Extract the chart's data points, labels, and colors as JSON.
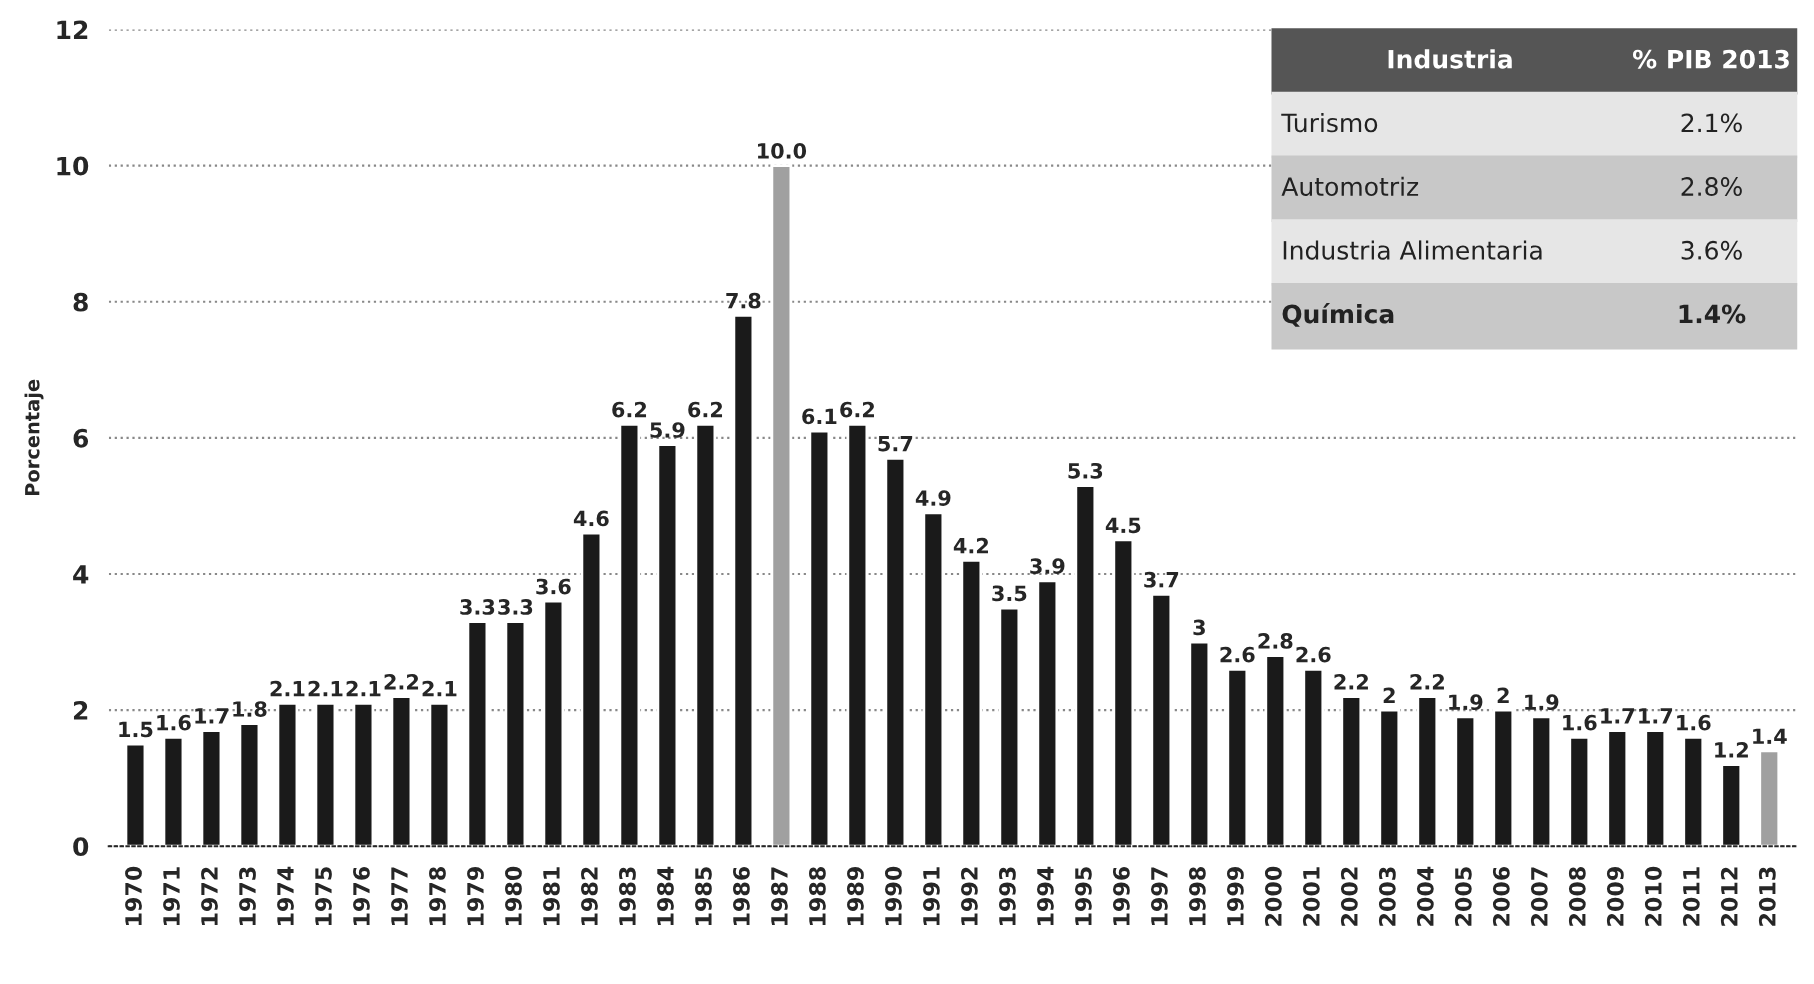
{
  "chart_data": {
    "type": "bar",
    "ylabel": "Porcentaje",
    "categories": [
      "1970",
      "1971",
      "1972",
      "1973",
      "1974",
      "1975",
      "1976",
      "1977",
      "1978",
      "1979",
      "1980",
      "1981",
      "1982",
      "1983",
      "1984",
      "1985",
      "1986",
      "1987",
      "1988",
      "1989",
      "1990",
      "1991",
      "1992",
      "1993",
      "1994",
      "1995",
      "1996",
      "1997",
      "1998",
      "1999",
      "2000",
      "2001",
      "2002",
      "2003",
      "2004",
      "2005",
      "2006",
      "2007",
      "2008",
      "2009",
      "2010",
      "2011",
      "2012",
      "2013"
    ],
    "values": [
      1.5,
      1.6,
      1.7,
      1.8,
      2.1,
      2.1,
      2.1,
      2.2,
      2.1,
      3.3,
      3.3,
      3.6,
      4.6,
      6.2,
      5.9,
      6.2,
      7.8,
      10.0,
      6.1,
      6.2,
      5.7,
      4.9,
      4.2,
      3.5,
      3.9,
      5.3,
      4.5,
      3.7,
      3,
      2.6,
      2.8,
      2.6,
      2.2,
      2,
      2.2,
      1.9,
      2,
      1.9,
      1.6,
      1.7,
      1.7,
      1.6,
      1.2,
      1.4
    ],
    "value_labels": [
      "1.5",
      "1.6",
      "1.7",
      "1.8",
      "2.1",
      "2.1",
      "2.1",
      "2.2",
      "2.1",
      "3.3",
      "3.3",
      "3.6",
      "4.6",
      "6.2",
      "5.9",
      "6.2",
      "7.8",
      "10.0",
      "6.1",
      "6.2",
      "5.7",
      "4.9",
      "4.2",
      "3.5",
      "3.9",
      "5.3",
      "4.5",
      "3.7",
      "3",
      "2.6",
      "2.8",
      "2.6",
      "2.2",
      "2",
      "2.2",
      "1.9",
      "2",
      "1.9",
      "1.6",
      "1.7",
      "1.7",
      "1.6",
      "1.2",
      "1.4"
    ],
    "colors": [
      "#1a1a1a",
      "#1a1a1a",
      "#1a1a1a",
      "#1a1a1a",
      "#1a1a1a",
      "#1a1a1a",
      "#1a1a1a",
      "#1a1a1a",
      "#1a1a1a",
      "#1a1a1a",
      "#1a1a1a",
      "#1a1a1a",
      "#1a1a1a",
      "#1a1a1a",
      "#1a1a1a",
      "#1a1a1a",
      "#1a1a1a",
      "#a0a0a0",
      "#1a1a1a",
      "#1a1a1a",
      "#1a1a1a",
      "#1a1a1a",
      "#1a1a1a",
      "#1a1a1a",
      "#1a1a1a",
      "#1a1a1a",
      "#1a1a1a",
      "#1a1a1a",
      "#1a1a1a",
      "#1a1a1a",
      "#1a1a1a",
      "#1a1a1a",
      "#1a1a1a",
      "#1a1a1a",
      "#1a1a1a",
      "#1a1a1a",
      "#1a1a1a",
      "#1a1a1a",
      "#1a1a1a",
      "#1a1a1a",
      "#1a1a1a",
      "#1a1a1a",
      "#1a1a1a",
      "#a0a0a0"
    ],
    "ylim": [
      0,
      12
    ],
    "yticks": [
      0,
      2,
      4,
      6,
      8,
      10,
      12
    ],
    "grid": "y",
    "legend": false,
    "annotations": [
      "Industria",
      "% PIB 2013",
      "Turismo",
      "2.1%",
      "Automotriz",
      "2.8%",
      "Industria Alimentaria",
      "3.6%",
      "Química",
      "1.4%"
    ]
  }
}
